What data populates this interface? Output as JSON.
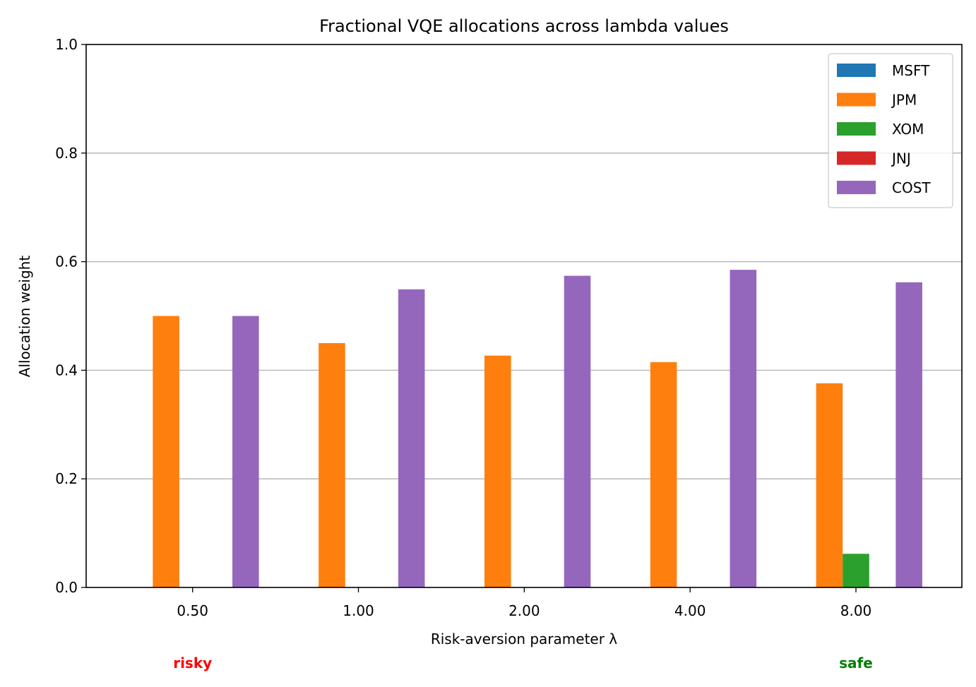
{
  "chart_data": {
    "type": "bar",
    "title": "Fractional VQE allocations across lambda values",
    "xlabel": "Risk-aversion parameter λ",
    "ylabel": "Allocation weight",
    "categories": [
      "0.50",
      "1.00",
      "2.00",
      "4.00",
      "8.00"
    ],
    "ylim": [
      0,
      1.0
    ],
    "yticks": [
      "0.0",
      "0.2",
      "0.4",
      "0.6",
      "0.8",
      "1.0"
    ],
    "grid": "y",
    "legend_position": "top-right",
    "series": [
      {
        "name": "MSFT",
        "color": "#1f77b4",
        "values": [
          0,
          0,
          0,
          0,
          0
        ]
      },
      {
        "name": "JPM",
        "color": "#ff7f0e",
        "values": [
          0.5,
          0.45,
          0.427,
          0.415,
          0.376
        ]
      },
      {
        "name": "XOM",
        "color": "#2ca02c",
        "values": [
          0,
          0,
          0,
          0,
          0.062
        ]
      },
      {
        "name": "JNJ",
        "color": "#d62728",
        "values": [
          0,
          0,
          0,
          0,
          0
        ]
      },
      {
        "name": "COST",
        "color": "#9467bd",
        "values": [
          0.5,
          0.549,
          0.574,
          0.585,
          0.562
        ]
      }
    ],
    "annotations": [
      {
        "text": "risky",
        "category": "0.50",
        "color": "#ff0000"
      },
      {
        "text": "safe",
        "category": "8.00",
        "color": "#008000"
      }
    ]
  }
}
